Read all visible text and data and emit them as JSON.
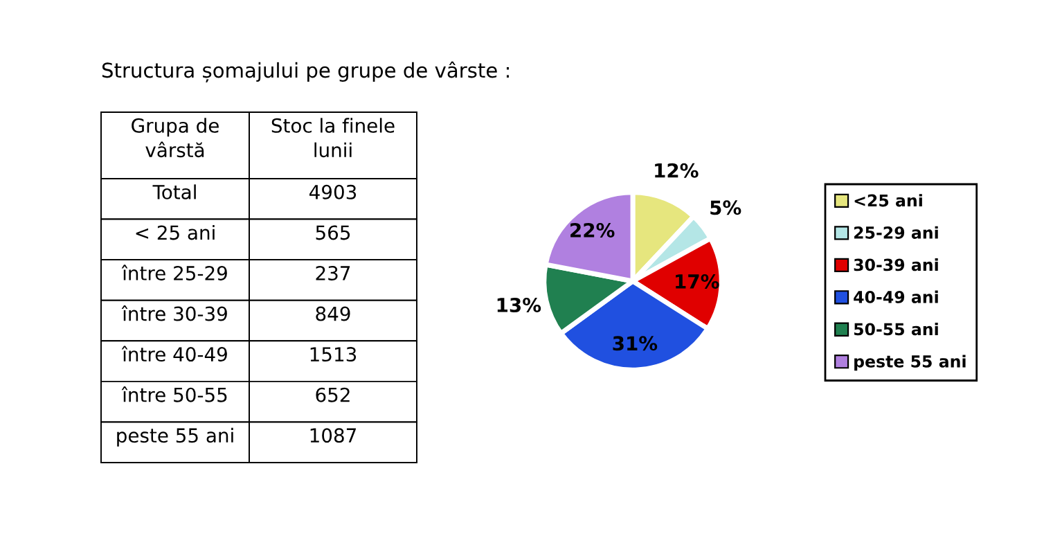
{
  "chart_data": [
    {
      "type": "other",
      "title": "Structura șomajului pe grupe de vârste :",
      "xlabel": "Grupa de vârstă",
      "ylabel": "Stoc la finele lunii",
      "categories": [
        "Total",
        "< 25 ani",
        "între 25-29",
        "între 30-39",
        "între 40-49",
        "între 50-55",
        "peste 55 ani"
      ],
      "values": [
        4903,
        565,
        237,
        849,
        1513,
        652,
        1087
      ],
      "data_labels": true
    },
    {
      "type": "pie",
      "categories": [
        "<25 ani",
        "25-29 ani",
        "30-39 ani",
        "40-49 ani",
        "50-55 ani",
        "peste 55 ani"
      ],
      "values": [
        12,
        5,
        17,
        31,
        13,
        22
      ],
      "colors": [
        "#e6e67e",
        "#b4e6e6",
        "#e00000",
        "#2050e0",
        "#208050",
        "#b080e0"
      ],
      "value_labels": [
        "12%",
        "5%",
        "17%",
        "31%",
        "13%",
        "22%"
      ],
      "legend": "right"
    }
  ]
}
